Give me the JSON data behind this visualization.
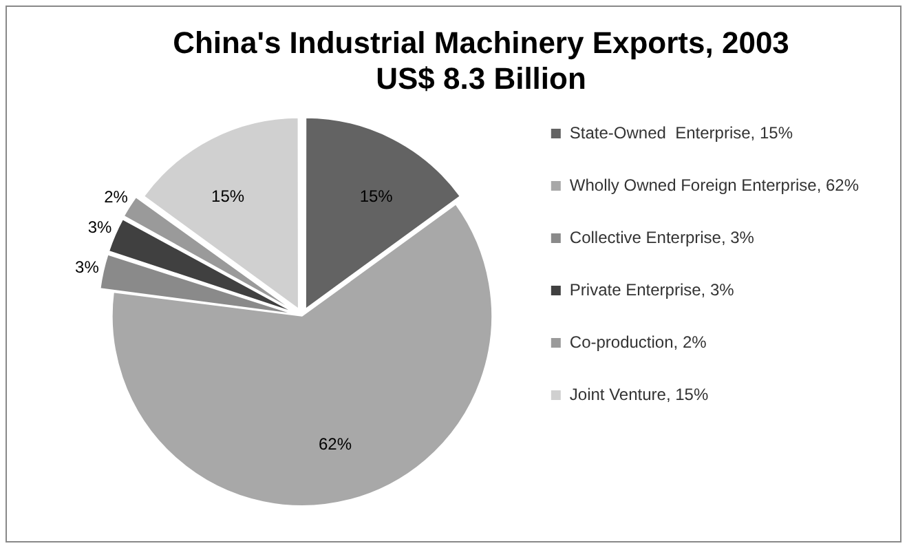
{
  "chart_data": {
    "type": "pie",
    "title": "China's Industrial Machinery Exports, 2003",
    "subtitle": "US$ 8.3 Billion",
    "categories": [
      "State-Owned  Enterprise, 15%",
      "Wholly Owned Foreign Enterprise, 62%",
      "Collective Enterprise, 3%",
      "Private Enterprise, 3%",
      "Co-production, 2%",
      "Joint Venture, 15%"
    ],
    "values": [
      15,
      62,
      3,
      3,
      2,
      15
    ],
    "value_labels": [
      "15%",
      "62%",
      "3%",
      "3%",
      "2%",
      "15%"
    ],
    "colors": [
      "#636363",
      "#a8a8a8",
      "#8a8a8a",
      "#404040",
      "#9a9a9a",
      "#d0d0d0"
    ],
    "legend": "right"
  }
}
